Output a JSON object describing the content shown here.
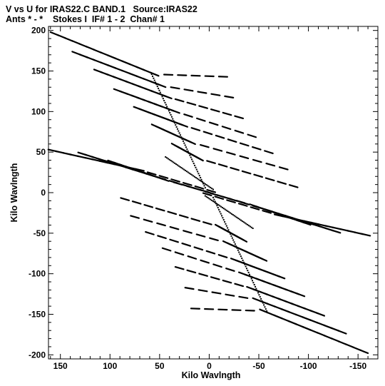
{
  "header": {
    "line1": "V vs U for IRAS22.C BAND.1   Source:IRAS22",
    "line2": "Ants * - *    Stokes I  IF# 1 - 2  Chan# 1"
  },
  "chart_data": {
    "type": "scatter",
    "title": "V vs U for IRAS22.C BAND.1   Source:IRAS22",
    "subtitle": "Ants * - *    Stokes I  IF# 1 - 2  Chan# 1",
    "xlabel": "Kilo Wavlngth",
    "ylabel": "Kilo Wavlngth",
    "xlim": [
      162,
      -170
    ],
    "ylim": [
      -205,
      205
    ],
    "x_reversed": true,
    "grid": false,
    "xticks": [
      150,
      100,
      50,
      0,
      -50,
      -100,
      -150
    ],
    "xtick_labels": [
      "150",
      "100",
      "50",
      "0",
      "-50",
      "-100",
      "-150"
    ],
    "yticks": [
      200,
      150,
      100,
      50,
      0,
      -50,
      -100,
      -150,
      -200
    ],
    "ytick_labels": [
      "200",
      "150",
      "100",
      "50",
      "0",
      "-50",
      "-100",
      "-150",
      "-200"
    ],
    "marker_color": "#000000",
    "tracks": [
      {
        "from": [
          156,
          196
        ],
        "to": [
          55,
          146
        ],
        "end": [
          -14,
          143
        ],
        "points": 14
      },
      {
        "from": [
          134,
          172
        ],
        "to": [
          48,
          132
        ],
        "end": [
          -20,
          118
        ],
        "points": 12
      },
      {
        "from": [
          112,
          150
        ],
        "to": [
          42,
          118
        ],
        "end": [
          -30,
          93
        ],
        "points": 11
      },
      {
        "from": [
          92,
          126
        ],
        "to": [
          34,
          100
        ],
        "end": [
          -43,
          70
        ],
        "points": 10
      },
      {
        "from": [
          72,
          104
        ],
        "to": [
          26,
          83
        ],
        "end": [
          -60,
          50
        ],
        "points": 10
      },
      {
        "from": [
          54,
          82
        ],
        "to": [
          18,
          62
        ],
        "end": [
          -75,
          30
        ],
        "points": 9
      },
      {
        "from": [
          34,
          58
        ],
        "to": [
          10,
          42
        ],
        "end": [
          -85,
          8
        ],
        "points": 8
      },
      {
        "from": [
          158,
          52
        ],
        "to": [
          70,
          28
        ],
        "end": [
          -2,
          2
        ],
        "points": 12
      },
      {
        "from": [
          128,
          48
        ],
        "to": [
          60,
          22
        ],
        "end": [
          0,
          0
        ],
        "points": 10
      },
      {
        "from": [
          98,
          38
        ],
        "to": [
          45,
          16
        ],
        "end": [
          5,
          2
        ],
        "points": 9
      },
      {
        "from": [
          -156,
          -196
        ],
        "to": [
          -55,
          -146
        ],
        "end": [
          14,
          -143
        ],
        "points": 14
      },
      {
        "from": [
          -134,
          -172
        ],
        "to": [
          -48,
          -132
        ],
        "end": [
          20,
          -118
        ],
        "points": 12
      },
      {
        "from": [
          -112,
          -150
        ],
        "to": [
          -42,
          -118
        ],
        "end": [
          30,
          -93
        ],
        "points": 11
      },
      {
        "from": [
          -92,
          -126
        ],
        "to": [
          -34,
          -100
        ],
        "end": [
          43,
          -70
        ],
        "points": 10
      },
      {
        "from": [
          -72,
          -104
        ],
        "to": [
          -26,
          -83
        ],
        "end": [
          60,
          -50
        ],
        "points": 10
      },
      {
        "from": [
          -54,
          -82
        ],
        "to": [
          -18,
          -62
        ],
        "end": [
          75,
          -30
        ],
        "points": 9
      },
      {
        "from": [
          -34,
          -58
        ],
        "to": [
          -10,
          -42
        ],
        "end": [
          85,
          -8
        ],
        "points": 8
      },
      {
        "from": [
          -158,
          -52
        ],
        "to": [
          -70,
          -28
        ],
        "end": [
          2,
          -2
        ],
        "points": 12
      },
      {
        "from": [
          -128,
          -48
        ],
        "to": [
          -60,
          -22
        ],
        "end": [
          0,
          0
        ],
        "points": 10
      },
      {
        "from": [
          -98,
          -38
        ],
        "to": [
          -45,
          -16
        ],
        "end": [
          -5,
          -2
        ],
        "points": 9
      }
    ],
    "diagonals": [
      {
        "from": [
          58,
          146
        ],
        "to": [
          4,
          6
        ],
        "points": 28
      },
      {
        "from": [
          -58,
          -146
        ],
        "to": [
          -4,
          -6
        ],
        "points": 28
      },
      {
        "from": [
          44,
          44
        ],
        "to": [
          -4,
          4
        ],
        "points": 18
      },
      {
        "from": [
          -44,
          -44
        ],
        "to": [
          4,
          -4
        ],
        "points": 18
      }
    ]
  }
}
